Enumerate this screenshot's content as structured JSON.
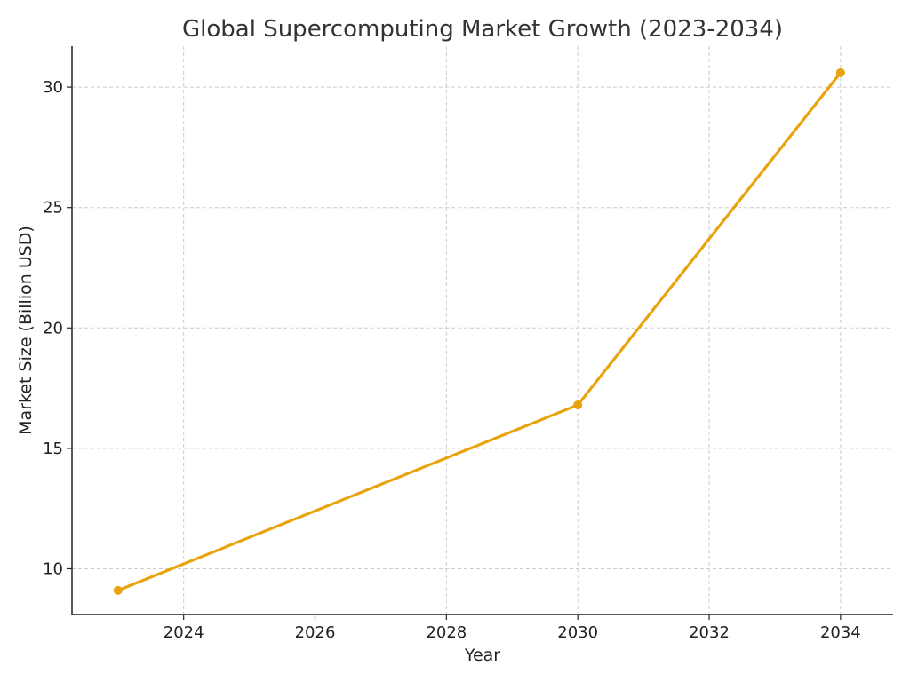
{
  "chart_data": {
    "type": "line",
    "title": "Global Supercomputing Market Growth (2023-2034)",
    "xlabel": "Year",
    "ylabel": "Market Size (Billion USD)",
    "x": [
      2023,
      2030,
      2034
    ],
    "series": [
      {
        "values": [
          9.1,
          16.8,
          30.6
        ],
        "color": "#E8A30D"
      }
    ],
    "xlim": [
      2022.3,
      2034.8
    ],
    "ylim": [
      8.1,
      31.7
    ],
    "xticks": [
      2024,
      2026,
      2028,
      2030,
      2032,
      2034
    ],
    "yticks": [
      10,
      15,
      20,
      25,
      30
    ],
    "grid": true,
    "markers": true
  }
}
